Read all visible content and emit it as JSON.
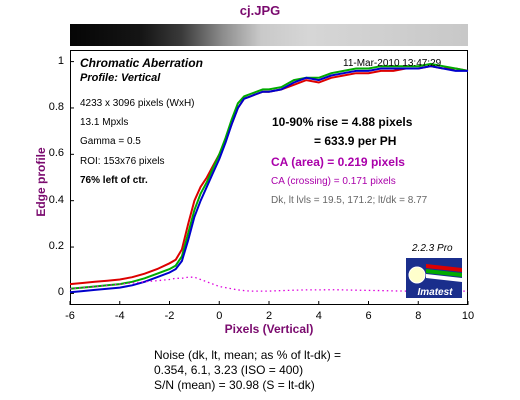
{
  "file_title": "cj.JPG",
  "header": {
    "chart_title": "Chromatic Aberration",
    "profile": "Profile: Vertical",
    "timestamp": "11-Mar-2010 13:47:29"
  },
  "info": {
    "pixels": "4233 x 3096 pixels (WxH)",
    "mpxls": "13.1 Mpxls",
    "gamma": "Gamma = 0.5",
    "roi": "ROI: 153x76 pixels",
    "position": "76% left of ctr."
  },
  "results": {
    "rise": "10-90% rise = 4.88 pixels",
    "per_ph": "= 633.9 per PH",
    "ca_area": "CA (area) = 0.219 pixels",
    "ca_crossing": "CA (crossing) = 0.171 pixels",
    "dk_lt": "Dk, lt lvls = 19.5, 171.2;  lt/dk = 8.77"
  },
  "version": "2.2.3  Pro",
  "logo": {
    "text": "Imatest"
  },
  "footer": {
    "line1": "Noise (dk, lt, mean; as % of lt-dk) =",
    "line2": "0.354,  6.1,  3.23  (ISO =  400)",
    "line3": "S/N (mean) = 30.98  (S = lt-dk)"
  },
  "colors": {
    "red": "#dd0000",
    "green": "#00aa00",
    "blue": "#0000cc",
    "magenta": "#dd00dd",
    "label": "#7a0a6e"
  },
  "chart_data": {
    "type": "line",
    "xlabel": "Pixels (Vertical)",
    "ylabel": "Edge profile",
    "xlim": [
      -6,
      10
    ],
    "ylim": [
      -0.05,
      1.05
    ],
    "xticks": [
      "-6",
      "-4",
      "-2",
      "0",
      "2",
      "4",
      "6",
      "8",
      "10"
    ],
    "yticks": [
      "0",
      "0.2",
      "0.4",
      "0.6",
      "0.8",
      "1"
    ],
    "grid": false,
    "x": [
      -6,
      -5.5,
      -5,
      -4.5,
      -4,
      -3.5,
      -3,
      -2.5,
      -2,
      -1.75,
      -1.5,
      -1.25,
      -1,
      -0.75,
      -0.5,
      -0.25,
      0,
      0.25,
      0.5,
      0.75,
      1,
      1.25,
      1.5,
      1.75,
      2,
      2.5,
      3,
      3.5,
      4,
      4.5,
      5,
      5.5,
      6,
      6.5,
      7,
      7.5,
      8,
      8.5,
      9,
      9.5,
      10
    ],
    "series": [
      {
        "color": "#dd0000",
        "values": [
          0.04,
          0.045,
          0.05,
          0.055,
          0.06,
          0.07,
          0.085,
          0.105,
          0.13,
          0.145,
          0.19,
          0.3,
          0.4,
          0.46,
          0.5,
          0.55,
          0.6,
          0.66,
          0.73,
          0.8,
          0.84,
          0.85,
          0.86,
          0.87,
          0.87,
          0.88,
          0.9,
          0.92,
          0.91,
          0.93,
          0.94,
          0.95,
          0.95,
          0.96,
          0.96,
          0.97,
          0.97,
          0.98,
          0.97,
          0.97,
          0.96
        ]
      },
      {
        "color": "#00aa00",
        "values": [
          0.02,
          0.025,
          0.03,
          0.035,
          0.04,
          0.05,
          0.065,
          0.085,
          0.105,
          0.12,
          0.16,
          0.26,
          0.36,
          0.43,
          0.48,
          0.54,
          0.6,
          0.67,
          0.75,
          0.82,
          0.85,
          0.86,
          0.87,
          0.88,
          0.88,
          0.89,
          0.92,
          0.93,
          0.93,
          0.95,
          0.96,
          0.97,
          0.97,
          0.98,
          0.98,
          0.98,
          0.98,
          0.99,
          0.98,
          0.97,
          0.96
        ]
      },
      {
        "color": "#0000cc",
        "values": [
          0.005,
          0.01,
          0.015,
          0.02,
          0.025,
          0.035,
          0.05,
          0.07,
          0.09,
          0.105,
          0.14,
          0.23,
          0.33,
          0.4,
          0.46,
          0.52,
          0.58,
          0.65,
          0.73,
          0.8,
          0.84,
          0.85,
          0.86,
          0.87,
          0.87,
          0.88,
          0.91,
          0.93,
          0.92,
          0.94,
          0.95,
          0.96,
          0.96,
          0.97,
          0.97,
          0.97,
          0.97,
          0.98,
          0.97,
          0.96,
          0.96
        ]
      },
      {
        "color": "#dd00dd",
        "dashed": true,
        "values": [
          0.02,
          0.025,
          0.03,
          0.035,
          0.04,
          0.045,
          0.05,
          0.055,
          0.06,
          0.065,
          0.065,
          0.07,
          0.07,
          0.06,
          0.05,
          0.04,
          0.03,
          0.025,
          0.02,
          0.015,
          0.012,
          0.01,
          0.01,
          0.01,
          0.01,
          0.012,
          0.014,
          0.015,
          0.015,
          0.016,
          0.015,
          0.014,
          0.013,
          0.012,
          0.011,
          0.01,
          0.01,
          0.01,
          0.01,
          0.01,
          0.01
        ]
      }
    ]
  }
}
